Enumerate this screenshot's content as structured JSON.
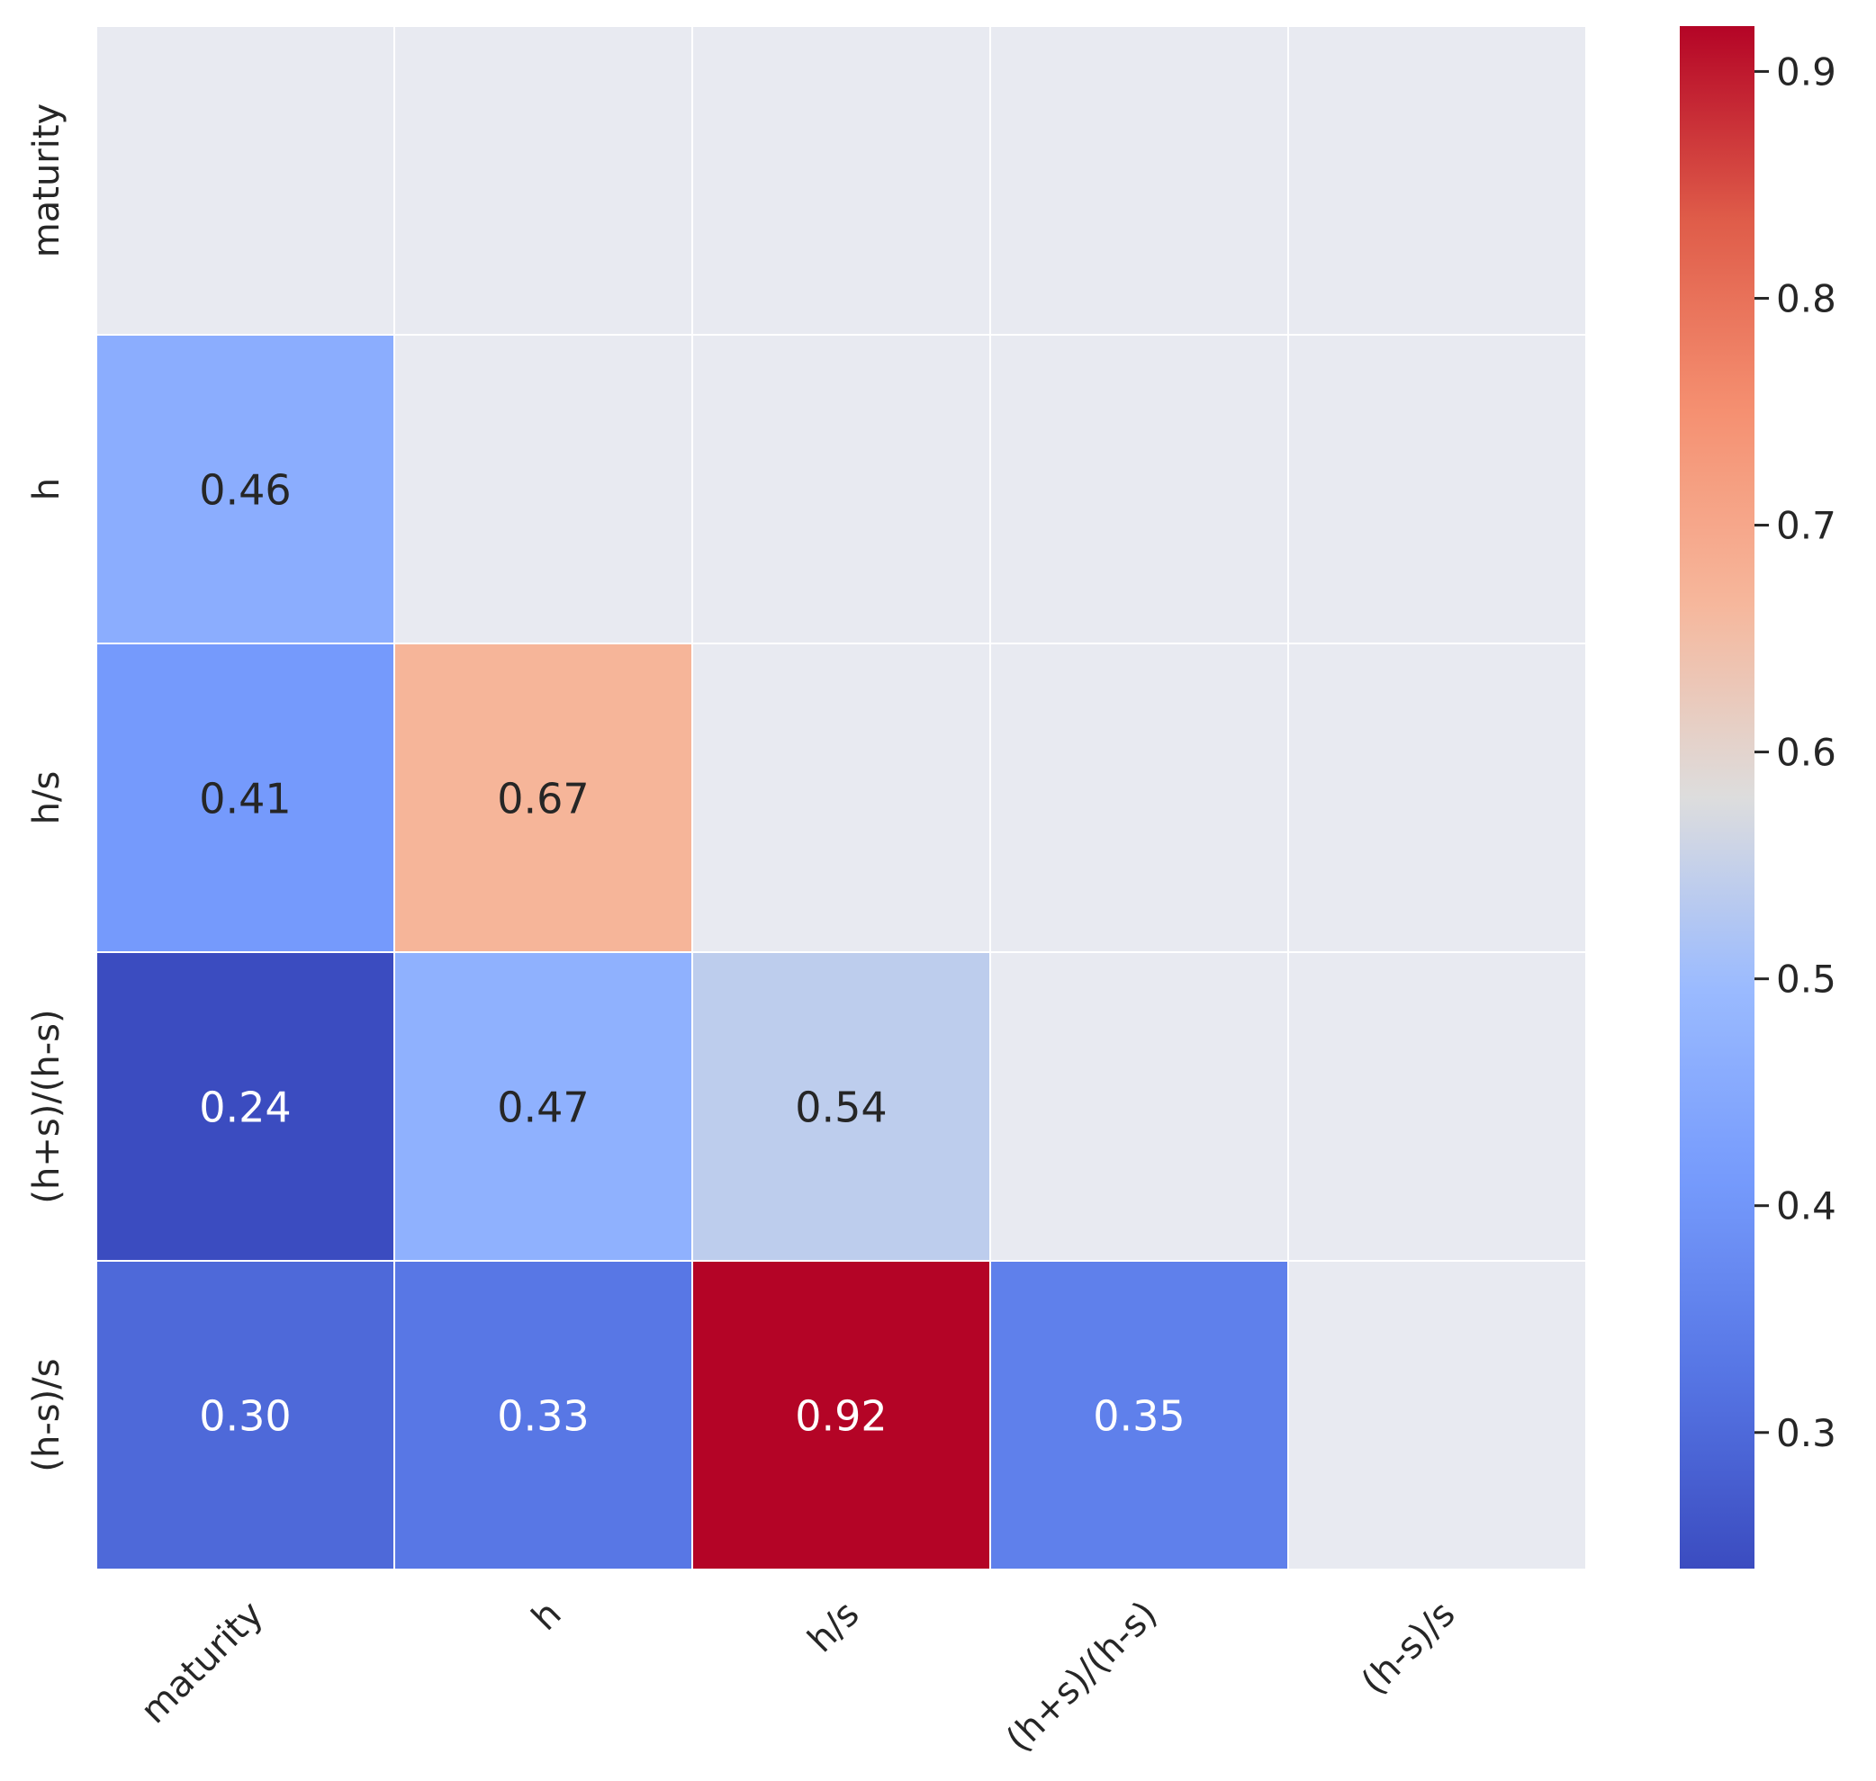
{
  "chart_data": {
    "type": "heatmap",
    "title": "",
    "xlabel": "",
    "ylabel": "",
    "row_labels": [
      "maturity",
      "h",
      "h/s",
      "(h+s)/(h-s)",
      "(h-s)/s"
    ],
    "col_labels": [
      "maturity",
      "h",
      "h/s",
      "(h+s)/(h-s)",
      "(h-s)/s"
    ],
    "values": [
      [
        null,
        null,
        null,
        null,
        null
      ],
      [
        0.46,
        null,
        null,
        null,
        null
      ],
      [
        0.41,
        0.67,
        null,
        null,
        null
      ],
      [
        0.24,
        0.47,
        0.54,
        null,
        null
      ],
      [
        0.3,
        0.33,
        0.92,
        0.35,
        null
      ]
    ],
    "annotation_labels": [
      [
        null,
        null,
        null,
        null,
        null
      ],
      [
        "0.46",
        null,
        null,
        null,
        null
      ],
      [
        "0.41",
        "0.67",
        null,
        null,
        null
      ],
      [
        "0.24",
        "0.47",
        "0.54",
        null,
        null
      ],
      [
        "0.30",
        "0.33",
        "0.92",
        "0.35",
        null
      ]
    ],
    "mask": "upper triangle including diagonal",
    "colormap": "coolwarm",
    "vmin": 0.24,
    "vmax": 0.92,
    "colorbar_ticks": [
      0.3,
      0.4,
      0.5,
      0.6,
      0.7,
      0.8,
      0.9
    ],
    "colorbar_tick_labels": [
      "0.3",
      "0.4",
      "0.5",
      "0.6",
      "0.7",
      "0.8",
      "0.9"
    ]
  },
  "colors": {
    "masked_cell": "#E8EAF1",
    "cell_border": "#FFFFFF",
    "text_dark": "#262626",
    "text_light": "#FFFFFF"
  }
}
